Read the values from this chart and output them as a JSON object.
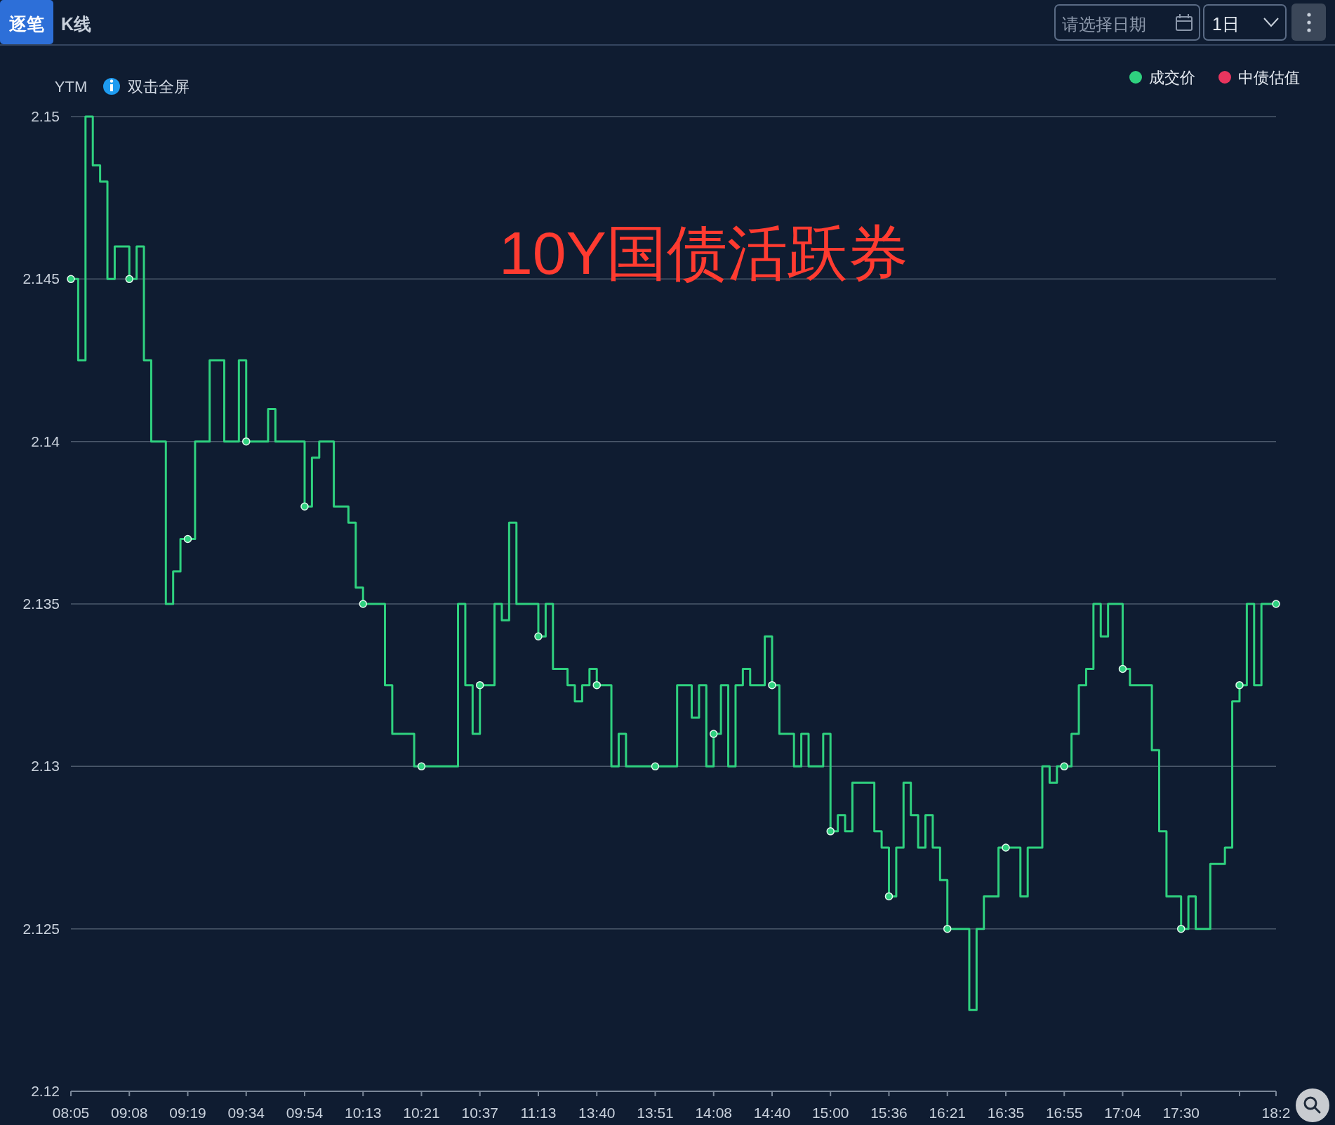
{
  "chart_data": {
    "type": "step",
    "title": "10Y国债活跃券",
    "ylabel": "YTM",
    "annotations": [
      "逐笔",
      "K线",
      "请选择日期",
      "1日",
      "双击全屏"
    ],
    "categories": [
      "08:05",
      null,
      null,
      null,
      null,
      null,
      null,
      null,
      "09:08",
      null,
      null,
      null,
      null,
      null,
      null,
      null,
      "09:19",
      null,
      null,
      null,
      null,
      null,
      null,
      null,
      "09:34",
      null,
      null,
      null,
      null,
      null,
      null,
      null,
      "09:54",
      null,
      null,
      null,
      null,
      null,
      null,
      null,
      "10:13",
      null,
      null,
      null,
      null,
      null,
      null,
      null,
      "10:21",
      null,
      null,
      null,
      null,
      null,
      null,
      null,
      "10:37",
      null,
      null,
      null,
      null,
      null,
      null,
      null,
      "11:13",
      null,
      null,
      null,
      null,
      null,
      null,
      null,
      "13:40",
      null,
      null,
      null,
      null,
      null,
      null,
      null,
      "13:51",
      null,
      null,
      null,
      null,
      null,
      null,
      null,
      "14:08",
      null,
      null,
      null,
      null,
      null,
      null,
      null,
      "14:40",
      null,
      null,
      null,
      null,
      null,
      null,
      null,
      "15:00",
      null,
      null,
      null,
      null,
      null,
      null,
      null,
      "15:36",
      null,
      null,
      null,
      null,
      null,
      null,
      null,
      "16:21",
      null,
      null,
      null,
      null,
      null,
      null,
      null,
      "16:35",
      null,
      null,
      null,
      null,
      null,
      null,
      null,
      "16:55",
      null,
      null,
      null,
      null,
      null,
      null,
      null,
      "17:04",
      null,
      null,
      null,
      null,
      null,
      null,
      null,
      "17:30",
      null,
      null,
      null,
      null,
      null,
      null,
      null,
      null,
      null,
      null,
      null,
      null,
      "18:2"
    ],
    "series": [
      {
        "name": "成交价",
        "color": "#2fd17f",
        "values": [
          2.145,
          2.1425,
          2.15,
          2.1485,
          2.148,
          2.145,
          2.146,
          2.146,
          2.145,
          2.146,
          2.1425,
          2.14,
          2.14,
          2.135,
          2.136,
          2.137,
          2.137,
          2.14,
          2.14,
          2.1425,
          2.1425,
          2.14,
          2.14,
          2.1425,
          2.14,
          2.14,
          2.14,
          2.141,
          2.14,
          2.14,
          2.14,
          2.14,
          2.138,
          2.1395,
          2.14,
          2.14,
          2.138,
          2.138,
          2.1375,
          2.1355,
          2.135,
          2.135,
          2.135,
          2.1325,
          2.131,
          2.131,
          2.131,
          2.13,
          2.13,
          2.13,
          2.13,
          2.13,
          2.13,
          2.135,
          2.1325,
          2.131,
          2.1325,
          2.1325,
          2.135,
          2.1345,
          2.1375,
          2.135,
          2.135,
          2.135,
          2.134,
          2.135,
          2.133,
          2.133,
          2.1325,
          2.132,
          2.1325,
          2.133,
          2.1325,
          2.1325,
          2.13,
          2.131,
          2.13,
          2.13,
          2.13,
          2.13,
          2.13,
          2.13,
          2.13,
          2.1325,
          2.1325,
          2.1315,
          2.1325,
          2.13,
          2.131,
          2.1325,
          2.13,
          2.1325,
          2.133,
          2.1325,
          2.1325,
          2.134,
          2.1325,
          2.131,
          2.131,
          2.13,
          2.131,
          2.13,
          2.13,
          2.131,
          2.128,
          2.1285,
          2.128,
          2.1295,
          2.1295,
          2.1295,
          2.128,
          2.1275,
          2.126,
          2.1275,
          2.1295,
          2.1285,
          2.1275,
          2.1285,
          2.1275,
          2.1265,
          2.125,
          2.125,
          2.125,
          2.1225,
          2.125,
          2.126,
          2.126,
          2.1275,
          2.1275,
          2.1275,
          2.126,
          2.1275,
          2.1275,
          2.13,
          2.1295,
          2.13,
          2.13,
          2.131,
          2.1325,
          2.133,
          2.135,
          2.134,
          2.135,
          2.135,
          2.133,
          2.1325,
          2.1325,
          2.1325,
          2.1305,
          2.128,
          2.126,
          2.126,
          2.125,
          2.126,
          2.125,
          2.125,
          2.127,
          2.127,
          2.1275,
          2.132,
          2.1325,
          2.135,
          2.1325,
          2.135,
          2.135,
          2.135
        ]
      },
      {
        "name": "中债估值",
        "color": "#e8355e",
        "values": [
          null,
          null,
          null,
          null,
          null,
          null,
          null,
          null,
          null,
          null,
          null,
          null,
          null,
          null,
          null,
          null,
          null,
          null,
          null,
          null,
          null,
          null,
          null,
          null,
          null,
          null,
          null,
          null,
          null,
          null,
          null,
          null,
          null,
          null,
          null,
          null,
          null,
          null,
          null,
          null,
          null,
          null,
          null,
          null,
          null,
          null,
          null,
          null,
          null,
          null,
          null,
          null,
          null,
          null,
          null,
          null,
          null,
          null,
          null,
          null,
          null,
          null,
          null,
          null,
          null,
          null,
          null,
          null,
          null,
          null,
          null,
          null,
          null,
          null,
          null,
          null,
          null,
          null,
          null,
          null,
          null,
          null,
          null,
          null,
          null,
          null,
          null,
          null,
          null,
          null,
          null,
          null,
          null,
          null,
          null,
          null,
          null,
          null,
          null,
          null,
          null,
          null,
          null,
          null,
          null,
          null,
          null,
          null,
          null,
          null,
          null,
          null,
          null,
          null,
          null,
          null,
          null,
          null,
          null,
          null,
          null,
          null,
          null,
          null,
          null,
          null,
          null,
          null,
          null,
          null,
          null,
          null,
          null,
          null,
          null,
          null,
          null,
          null,
          null,
          null,
          null,
          null,
          null,
          null,
          null,
          null,
          null,
          null,
          null,
          null,
          null,
          null,
          null,
          null,
          null,
          null,
          null,
          null,
          null,
          null,
          null,
          null,
          null,
          null,
          null,
          null
        ]
      }
    ],
    "ylim": [
      2.12,
      2.15
    ],
    "yticks": [
      2.12,
      2.125,
      2.13,
      2.135,
      2.14,
      2.145,
      2.15
    ],
    "grid": "y",
    "legend": "top right"
  }
}
